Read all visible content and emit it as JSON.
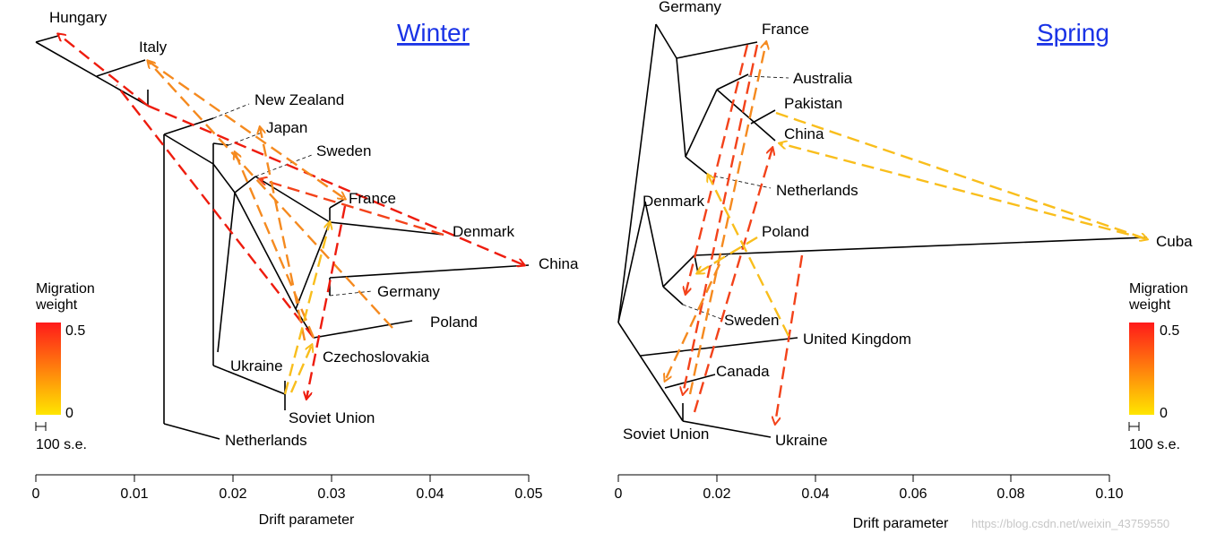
{
  "panels": [
    {
      "title": "Winter",
      "xlabel": "Drift parameter",
      "ticks": [
        "0",
        "0.01",
        "0.02",
        "0.03",
        "0.04",
        "0.05"
      ],
      "labels": [
        "Hungary",
        "Italy",
        "New Zealand",
        "Japan",
        "Sweden",
        "France",
        "Denmark",
        "China",
        "Germany",
        "Poland",
        "Czechoslovakia",
        "Ukraine",
        "Soviet Union",
        "Netherlands"
      ]
    },
    {
      "title": "Spring",
      "xlabel": "Drift parameter",
      "ticks": [
        "0",
        "0.02",
        "0.04",
        "0.06",
        "0.08",
        "0.10"
      ],
      "labels": [
        "Germany",
        "France",
        "Australia",
        "Pakistan",
        "China",
        "Netherlands",
        "Denmark",
        "Poland",
        "Cuba",
        "Sweden",
        "United Kingdom",
        "Canada",
        "Soviet Union",
        "Ukraine"
      ]
    }
  ],
  "legend": {
    "title_line1": "Migration",
    "title_line2": "weight",
    "max_label": "0.5",
    "min_label": "0",
    "scale_label": "100 s.e.",
    "color_max": "#ff1a1a",
    "color_min": "#ffe600"
  },
  "watermark": "https://blog.csdn.net/weixin_43759550"
}
